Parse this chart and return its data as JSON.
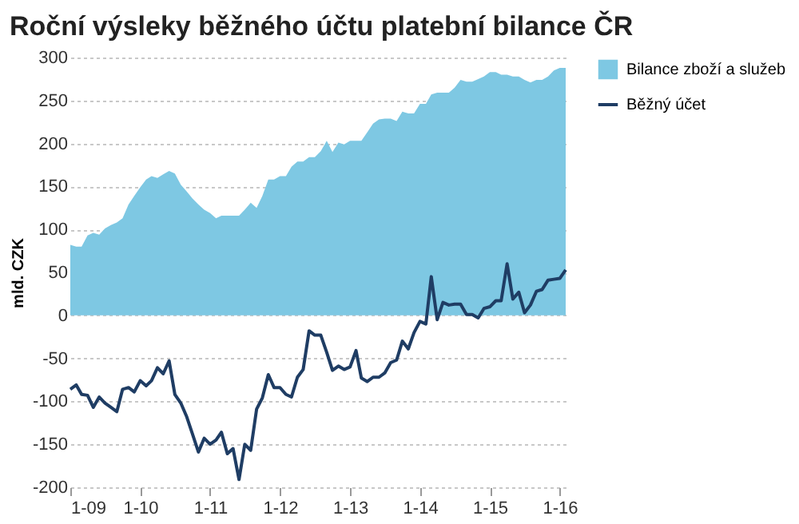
{
  "chart_data": {
    "type": "area",
    "title": "Roční výsleky běžného účtu platební bilance ČR",
    "ylabel": "mld. CZK",
    "x": [
      "2009-01",
      "2009-02",
      "2009-03",
      "2009-04",
      "2009-05",
      "2009-06",
      "2009-07",
      "2009-08",
      "2009-09",
      "2009-10",
      "2009-11",
      "2009-12",
      "2010-01",
      "2010-02",
      "2010-03",
      "2010-04",
      "2010-05",
      "2010-06",
      "2010-07",
      "2010-08",
      "2010-09",
      "2010-10",
      "2010-11",
      "2010-12",
      "2011-01",
      "2011-02",
      "2011-03",
      "2011-04",
      "2011-05",
      "2011-06",
      "2011-07",
      "2011-08",
      "2011-09",
      "2011-10",
      "2011-11",
      "2011-12",
      "2012-01",
      "2012-02",
      "2012-03",
      "2012-04",
      "2012-05",
      "2012-06",
      "2012-07",
      "2012-08",
      "2012-09",
      "2012-10",
      "2012-11",
      "2012-12",
      "2013-01",
      "2013-02",
      "2013-03",
      "2013-04",
      "2013-05",
      "2013-06",
      "2013-07",
      "2013-08",
      "2013-09",
      "2013-10",
      "2013-11",
      "2013-12",
      "2014-01",
      "2014-02",
      "2014-03",
      "2014-04",
      "2014-05",
      "2014-06",
      "2014-07",
      "2014-08",
      "2014-09",
      "2014-10",
      "2014-11",
      "2014-12",
      "2015-01",
      "2015-02",
      "2015-03",
      "2015-04",
      "2015-05",
      "2015-06",
      "2015-07",
      "2015-08",
      "2015-09",
      "2015-10",
      "2015-11",
      "2015-12",
      "2016-01",
      "2016-02"
    ],
    "series": [
      {
        "name": "Bilance zboží a služeb",
        "color": "#7ec8e3",
        "values": [
          82,
          80,
          80,
          93,
          96,
          94,
          101,
          105,
          108,
          113,
          129,
          139,
          149,
          158,
          162,
          160,
          164,
          168,
          165,
          152,
          144,
          136,
          129,
          123,
          119,
          113,
          116,
          116,
          116,
          116,
          123,
          131,
          125,
          139,
          158,
          158,
          162,
          162,
          173,
          179,
          179,
          184,
          184,
          191,
          203,
          190,
          201,
          199,
          203,
          203,
          203,
          213,
          223,
          228,
          229,
          229,
          226,
          237,
          235,
          235,
          246,
          246,
          257,
          259,
          259,
          259,
          265,
          274,
          272,
          272,
          275,
          278,
          283,
          283,
          280,
          280,
          278,
          278,
          274,
          271,
          274,
          274,
          278,
          285,
          288,
          288
        ]
      },
      {
        "name": "Běžný účet",
        "type": "line",
        "color": "#1f3d64",
        "values": [
          -86,
          -81,
          -92,
          -93,
          -107,
          -95,
          -102,
          -107,
          -112,
          -86,
          -84,
          -89,
          -76,
          -82,
          -76,
          -61,
          -68,
          -53,
          -92,
          -102,
          -118,
          -138,
          -159,
          -143,
          -150,
          -145,
          -136,
          -161,
          -155,
          -191,
          -150,
          -157,
          -109,
          -96,
          -69,
          -84,
          -84,
          -92,
          -95,
          -72,
          -63,
          -18,
          -23,
          -23,
          -43,
          -64,
          -59,
          -63,
          -60,
          -41,
          -73,
          -77,
          -72,
          -72,
          -67,
          -55,
          -52,
          -30,
          -39,
          -20,
          -7,
          -10,
          45,
          -5,
          15,
          12,
          13,
          13,
          1,
          1,
          -3,
          8,
          10,
          17,
          17,
          60,
          19,
          27,
          3,
          12,
          28,
          30,
          41,
          42,
          43,
          53
        ]
      }
    ],
    "xlim": [
      "2009-01",
      "2016-02"
    ],
    "xticks": [
      {
        "value": "2009-01",
        "label": "1-09"
      },
      {
        "value": "2010-01",
        "label": "1-10"
      },
      {
        "value": "2011-01",
        "label": "1-11"
      },
      {
        "value": "2012-01",
        "label": "1-12"
      },
      {
        "value": "2013-01",
        "label": "1-13"
      },
      {
        "value": "2014-01",
        "label": "1-14"
      },
      {
        "value": "2015-01",
        "label": "1-15"
      },
      {
        "value": "2016-01",
        "label": "1-16"
      }
    ],
    "ylim": [
      -200,
      300
    ],
    "yticks": [
      -200,
      -150,
      -100,
      -50,
      0,
      50,
      100,
      150,
      200,
      250,
      300
    ],
    "grid": "y",
    "legend": "right",
    "line_style": "solid",
    "marker": "none"
  }
}
